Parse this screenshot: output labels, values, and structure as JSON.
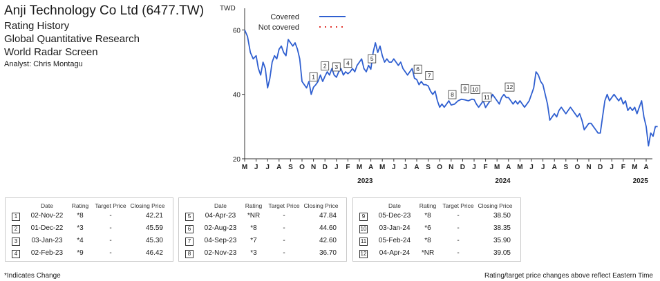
{
  "header": {
    "company": "Anji Technology Co Ltd (6477.TW)",
    "lines": [
      "Rating History",
      "Global Quantitative Research",
      "World Radar Screen"
    ],
    "analyst": "Analyst: Chris Montagu"
  },
  "chart_data": {
    "type": "line",
    "ylabel": "TWD",
    "ylim": [
      20,
      65
    ],
    "yticks": [
      20,
      40,
      60
    ],
    "grid": false,
    "legend": {
      "placement": "top-left",
      "entries": [
        {
          "label": "Covered",
          "style": "solid",
          "color": "#2f5fd0"
        },
        {
          "label": "Not covered",
          "style": "dotted",
          "color": "#e0322b"
        }
      ]
    },
    "month_labels": [
      "M",
      "J",
      "J",
      "A",
      "S",
      "O",
      "N",
      "D",
      "J",
      "F",
      "M",
      "A",
      "M",
      "J",
      "J",
      "A",
      "S",
      "O",
      "N",
      "D",
      "J",
      "F",
      "M",
      "A",
      "M",
      "J",
      "J",
      "A",
      "S",
      "O",
      "N",
      "D",
      "J",
      "F",
      "M",
      "A"
    ],
    "year_labels": [
      {
        "label": "2023",
        "month_index": 10.5
      },
      {
        "label": "2024",
        "month_index": 22.5
      },
      {
        "label": "2025",
        "month_index": 34.5
      }
    ],
    "series": [
      {
        "name": "Covered",
        "color": "#2f5fd0",
        "points": [
          [
            0,
            60
          ],
          [
            0.25,
            58
          ],
          [
            0.5,
            53
          ],
          [
            0.75,
            51
          ],
          [
            1,
            52
          ],
          [
            1.2,
            48
          ],
          [
            1.4,
            46
          ],
          [
            1.6,
            50
          ],
          [
            1.8,
            48
          ],
          [
            2,
            42
          ],
          [
            2.2,
            45
          ],
          [
            2.4,
            50
          ],
          [
            2.6,
            52
          ],
          [
            2.8,
            51
          ],
          [
            3,
            54
          ],
          [
            3.2,
            55
          ],
          [
            3.4,
            53
          ],
          [
            3.6,
            52
          ],
          [
            3.8,
            57
          ],
          [
            4,
            56
          ],
          [
            4.2,
            55
          ],
          [
            4.4,
            56
          ],
          [
            4.6,
            54
          ],
          [
            4.8,
            51
          ],
          [
            5,
            44
          ],
          [
            5.2,
            43
          ],
          [
            5.4,
            42
          ],
          [
            5.6,
            44
          ],
          [
            5.8,
            40
          ],
          [
            6,
            42.2
          ],
          [
            6.2,
            43
          ],
          [
            6.4,
            44
          ],
          [
            6.6,
            46
          ],
          [
            6.8,
            44
          ],
          [
            7,
            45.6
          ],
          [
            7.2,
            47
          ],
          [
            7.4,
            46
          ],
          [
            7.6,
            48
          ],
          [
            7.8,
            46
          ],
          [
            8,
            45.3
          ],
          [
            8.2,
            47
          ],
          [
            8.4,
            48
          ],
          [
            8.6,
            46
          ],
          [
            8.8,
            47
          ],
          [
            9,
            46.4
          ],
          [
            9.2,
            47
          ],
          [
            9.4,
            48
          ],
          [
            9.6,
            47
          ],
          [
            9.8,
            49
          ],
          [
            10,
            50
          ],
          [
            10.2,
            51
          ],
          [
            10.4,
            48
          ],
          [
            10.6,
            47
          ],
          [
            10.8,
            49
          ],
          [
            11,
            47.8
          ],
          [
            11.2,
            53
          ],
          [
            11.4,
            56
          ],
          [
            11.6,
            53
          ],
          [
            11.8,
            55
          ],
          [
            12,
            52
          ],
          [
            12.2,
            50
          ],
          [
            12.4,
            51
          ],
          [
            12.6,
            50
          ],
          [
            12.8,
            50
          ],
          [
            13,
            51
          ],
          [
            13.2,
            50
          ],
          [
            13.4,
            49
          ],
          [
            13.6,
            50
          ],
          [
            13.8,
            48
          ],
          [
            14,
            47
          ],
          [
            14.2,
            46
          ],
          [
            14.4,
            47
          ],
          [
            14.6,
            48
          ],
          [
            14.8,
            45
          ],
          [
            15,
            44.6
          ],
          [
            15.2,
            43
          ],
          [
            15.4,
            44
          ],
          [
            15.6,
            43
          ],
          [
            15.8,
            43
          ],
          [
            16,
            42.6
          ],
          [
            16.2,
            41
          ],
          [
            16.4,
            40
          ],
          [
            16.6,
            41
          ],
          [
            16.8,
            38
          ],
          [
            17,
            36
          ],
          [
            17.2,
            37
          ],
          [
            17.4,
            36
          ],
          [
            17.6,
            37
          ],
          [
            17.8,
            38
          ],
          [
            18,
            36.7
          ],
          [
            18.3,
            37
          ],
          [
            18.6,
            38
          ],
          [
            18.9,
            38.5
          ],
          [
            19.2,
            38.3
          ],
          [
            19.5,
            38
          ],
          [
            19.8,
            38.5
          ],
          [
            20,
            38.4
          ],
          [
            20.2,
            37
          ],
          [
            20.4,
            36
          ],
          [
            20.6,
            37
          ],
          [
            20.8,
            38
          ],
          [
            21,
            35.9
          ],
          [
            21.2,
            37
          ],
          [
            21.4,
            38
          ],
          [
            21.6,
            40
          ],
          [
            21.8,
            39
          ],
          [
            22,
            38
          ],
          [
            22.2,
            37
          ],
          [
            22.4,
            39
          ],
          [
            22.6,
            40
          ],
          [
            22.8,
            39
          ],
          [
            23,
            39
          ],
          [
            23.2,
            38
          ],
          [
            23.4,
            37
          ],
          [
            23.6,
            38
          ],
          [
            23.8,
            37
          ],
          [
            24,
            38
          ],
          [
            24.2,
            37
          ],
          [
            24.4,
            36
          ],
          [
            24.6,
            37
          ],
          [
            24.8,
            38
          ],
          [
            25,
            40
          ],
          [
            25.2,
            42
          ],
          [
            25.4,
            47
          ],
          [
            25.6,
            46
          ],
          [
            25.8,
            44
          ],
          [
            26,
            43
          ],
          [
            26.2,
            40
          ],
          [
            26.4,
            37
          ],
          [
            26.6,
            32
          ],
          [
            26.8,
            33
          ],
          [
            27,
            34
          ],
          [
            27.2,
            33
          ],
          [
            27.4,
            35
          ],
          [
            27.6,
            36
          ],
          [
            27.8,
            35
          ],
          [
            28,
            34
          ],
          [
            28.2,
            35
          ],
          [
            28.4,
            36
          ],
          [
            28.6,
            35
          ],
          [
            28.8,
            34
          ],
          [
            29,
            33
          ],
          [
            29.2,
            34
          ],
          [
            29.4,
            32
          ],
          [
            29.6,
            29
          ],
          [
            29.8,
            30
          ],
          [
            30,
            31
          ],
          [
            30.2,
            31
          ],
          [
            30.4,
            30
          ],
          [
            30.6,
            29
          ],
          [
            30.8,
            28
          ],
          [
            31,
            28
          ],
          [
            31.2,
            33
          ],
          [
            31.4,
            38
          ],
          [
            31.6,
            40
          ],
          [
            31.8,
            38
          ],
          [
            32,
            39
          ],
          [
            32.2,
            40
          ],
          [
            32.4,
            39
          ],
          [
            32.6,
            38
          ],
          [
            32.8,
            39
          ],
          [
            33,
            37
          ],
          [
            33.2,
            38
          ],
          [
            33.4,
            35
          ],
          [
            33.6,
            36
          ],
          [
            33.8,
            35
          ],
          [
            34,
            36
          ],
          [
            34.2,
            34
          ],
          [
            34.4,
            36
          ],
          [
            34.6,
            38
          ],
          [
            34.8,
            33
          ],
          [
            35,
            30
          ],
          [
            35.2,
            24
          ],
          [
            35.4,
            28
          ],
          [
            35.6,
            27
          ],
          [
            35.8,
            30
          ],
          [
            36,
            30
          ]
        ]
      }
    ],
    "annotations": [
      {
        "label": "1",
        "month_index": 6.0,
        "value": 42.21
      },
      {
        "label": "2",
        "month_index": 7.0,
        "value": 45.59
      },
      {
        "label": "3",
        "month_index": 8.0,
        "value": 45.3
      },
      {
        "label": "4",
        "month_index": 9.0,
        "value": 46.42
      },
      {
        "label": "5",
        "month_index": 11.1,
        "value": 47.84
      },
      {
        "label": "6",
        "month_index": 15.1,
        "value": 44.6
      },
      {
        "label": "7",
        "month_index": 16.1,
        "value": 42.6
      },
      {
        "label": "8",
        "month_index": 18.1,
        "value": 36.7
      },
      {
        "label": "9",
        "month_index": 19.2,
        "value": 38.5
      },
      {
        "label": "10",
        "month_index": 20.1,
        "value": 38.35
      },
      {
        "label": "11",
        "month_index": 21.1,
        "value": 35.9
      },
      {
        "label": "12",
        "month_index": 23.1,
        "value": 39.05
      }
    ]
  },
  "tables": [
    {
      "headers": [
        "Date",
        "Rating",
        "Target Price",
        "Closing Price"
      ],
      "rows": [
        {
          "n": "1",
          "date": "02-Nov-22",
          "rating": "*8",
          "tp": "-",
          "cp": "42.21"
        },
        {
          "n": "2",
          "date": "01-Dec-22",
          "rating": "*3",
          "tp": "-",
          "cp": "45.59"
        },
        {
          "n": "3",
          "date": "03-Jan-23",
          "rating": "*4",
          "tp": "-",
          "cp": "45.30"
        },
        {
          "n": "4",
          "date": "02-Feb-23",
          "rating": "*9",
          "tp": "-",
          "cp": "46.42"
        }
      ]
    },
    {
      "headers": [
        "Date",
        "Rating",
        "Target Price",
        "Closing Price"
      ],
      "rows": [
        {
          "n": "5",
          "date": "04-Apr-23",
          "rating": "*NR",
          "tp": "-",
          "cp": "47.84"
        },
        {
          "n": "6",
          "date": "02-Aug-23",
          "rating": "*8",
          "tp": "-",
          "cp": "44.60"
        },
        {
          "n": "7",
          "date": "04-Sep-23",
          "rating": "*7",
          "tp": "-",
          "cp": "42.60"
        },
        {
          "n": "8",
          "date": "02-Nov-23",
          "rating": "*3",
          "tp": "-",
          "cp": "36.70"
        }
      ]
    },
    {
      "headers": [
        "Date",
        "Rating",
        "Target Price",
        "Closing Price"
      ],
      "rows": [
        {
          "n": "9",
          "date": "05-Dec-23",
          "rating": "*8",
          "tp": "-",
          "cp": "38.50"
        },
        {
          "n": "10",
          "date": "03-Jan-24",
          "rating": "*6",
          "tp": "-",
          "cp": "38.35"
        },
        {
          "n": "11",
          "date": "05-Feb-24",
          "rating": "*8",
          "tp": "-",
          "cp": "35.90"
        },
        {
          "n": "12",
          "date": "04-Apr-24",
          "rating": "*NR",
          "tp": "-",
          "cp": "39.05"
        }
      ]
    }
  ],
  "footer": {
    "left": "*Indicates Change",
    "right": "Rating/target price changes above reflect Eastern Time"
  }
}
